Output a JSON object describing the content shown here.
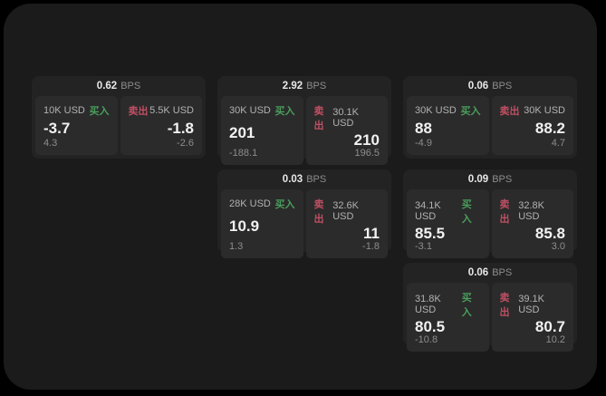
{
  "labels": {
    "buy": "买入",
    "sell": "卖出",
    "bps_unit": "BPS"
  },
  "colors": {
    "panel_bg": "#1b1b1b",
    "card_bg": "#232323",
    "subpanel_bg": "#2b2b2b",
    "buy_green": "#4a9e5c",
    "sell_red": "#c04f63",
    "header_value": "#e8e8e8",
    "value_text": "#f2f2f2",
    "label_text": "#b2b2b2",
    "muted_text": "#8d8d8d"
  },
  "cards": [
    {
      "col": 0,
      "row": 0,
      "bps": "0.62",
      "buy": {
        "amount": "10K USD",
        "value": "-3.7",
        "delta": "4.3"
      },
      "sell": {
        "amount": "5.5K USD",
        "value": "-1.8",
        "delta": "-2.6"
      }
    },
    {
      "col": 1,
      "row": 0,
      "bps": "2.92",
      "buy": {
        "amount": "30K USD",
        "value": "201",
        "delta": "-188.1"
      },
      "sell": {
        "amount": "30.1K USD",
        "value": "210",
        "delta": "196.5"
      }
    },
    {
      "col": 2,
      "row": 0,
      "bps": "0.06",
      "buy": {
        "amount": "30K USD",
        "value": "88",
        "delta": "-4.9"
      },
      "sell": {
        "amount": "30K USD",
        "value": "88.2",
        "delta": "4.7"
      }
    },
    {
      "col": 1,
      "row": 1,
      "bps": "0.03",
      "buy": {
        "amount": "28K USD",
        "value": "10.9",
        "delta": "1.3"
      },
      "sell": {
        "amount": "32.6K USD",
        "value": "11",
        "delta": "-1.8"
      }
    },
    {
      "col": 2,
      "row": 1,
      "bps": "0.09",
      "buy": {
        "amount": "34.1K USD",
        "value": "85.5",
        "delta": "-3.1"
      },
      "sell": {
        "amount": "32.8K USD",
        "value": "85.8",
        "delta": "3.0"
      }
    },
    {
      "col": 2,
      "row": 2,
      "bps": "0.06",
      "buy": {
        "amount": "31.8K USD",
        "value": "80.5",
        "delta": "-10.8"
      },
      "sell": {
        "amount": "39.1K USD",
        "value": "80.7",
        "delta": "10.2"
      }
    }
  ]
}
